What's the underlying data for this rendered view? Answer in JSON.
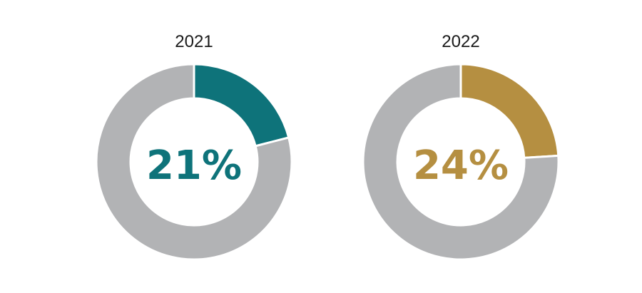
{
  "chart_data": [
    {
      "type": "pie",
      "title": "2021",
      "center_label": "21%",
      "slices": [
        {
          "value": 21,
          "color": "#0e737a"
        },
        {
          "value": 79,
          "color": "#b2b3b5"
        }
      ],
      "accent": "#0e737a"
    },
    {
      "type": "pie",
      "title": "2022",
      "center_label": "24%",
      "slices": [
        {
          "value": 24,
          "color": "#b58f41"
        },
        {
          "value": 76,
          "color": "#b2b3b5"
        }
      ],
      "accent": "#b58f41"
    }
  ]
}
